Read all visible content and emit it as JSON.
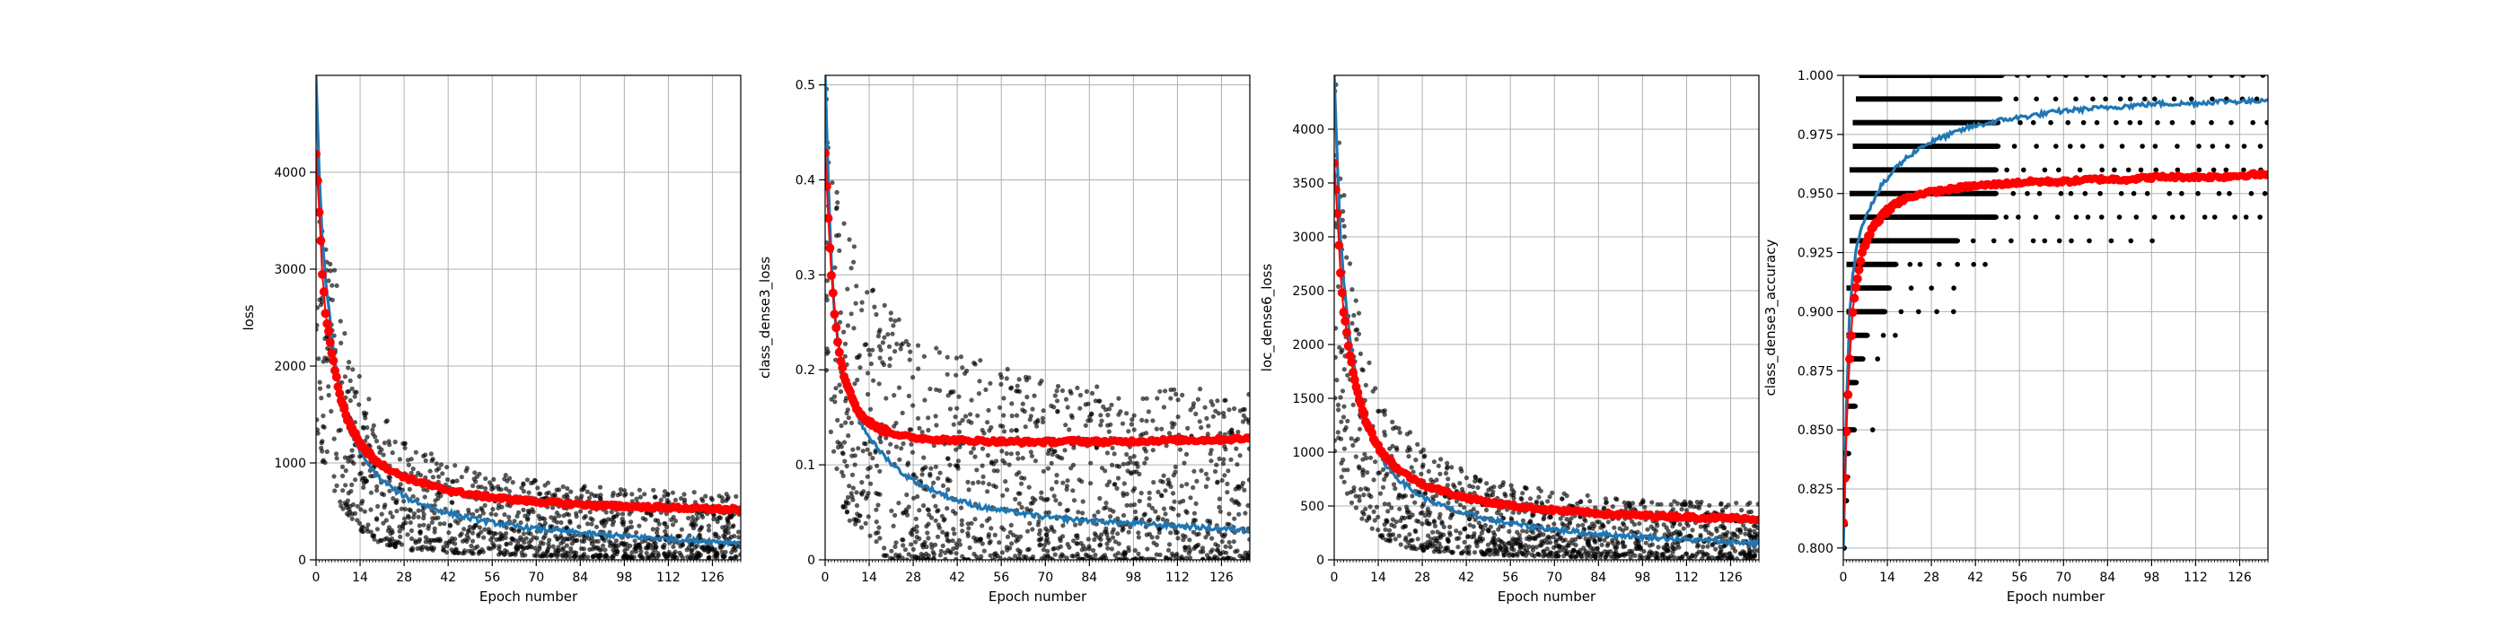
{
  "chart_data": [
    {
      "type": "scatter",
      "xlabel": "Epoch number",
      "ylabel": "loss",
      "xlim": [
        0,
        135
      ],
      "ylim": [
        0,
        5000
      ],
      "xticks": [
        0,
        14,
        28,
        42,
        56,
        70,
        84,
        98,
        112,
        126
      ],
      "yticks": [
        0,
        1000,
        2000,
        3000,
        4000
      ],
      "grid": true,
      "series": [
        {
          "kind": "scatter-cloud",
          "color": "#000000",
          "x": [
            1,
            2,
            3,
            5,
            8,
            12,
            16,
            20,
            25,
            30,
            40,
            50,
            60,
            70,
            80,
            90,
            100,
            110,
            120,
            130,
            135
          ],
          "y_min": [
            1300,
            1000,
            900,
            750,
            550,
            380,
            250,
            180,
            130,
            100,
            80,
            60,
            50,
            40,
            30,
            25,
            20,
            20,
            15,
            15,
            15
          ],
          "y_max": [
            5000,
            4400,
            3800,
            3200,
            2600,
            2100,
            1750,
            1550,
            1350,
            1200,
            1050,
            950,
            880,
            820,
            780,
            750,
            730,
            720,
            700,
            690,
            690
          ]
        },
        {
          "kind": "line",
          "color": "#1f77b4",
          "x": [
            0,
            1,
            2,
            3,
            4,
            5,
            6,
            8,
            10,
            12,
            14,
            16,
            20,
            25,
            30,
            40,
            50,
            60,
            70,
            80,
            90,
            100,
            110,
            120,
            130,
            135
          ],
          "y": [
            5000,
            4000,
            3300,
            2900,
            2600,
            2300,
            2050,
            1700,
            1450,
            1250,
            1120,
            1000,
            850,
            720,
            620,
            500,
            420,
            360,
            320,
            290,
            260,
            240,
            220,
            200,
            185,
            180
          ]
        },
        {
          "kind": "line-markers",
          "color": "#ff0000",
          "x": [
            0,
            1,
            2,
            3,
            4,
            5,
            6,
            8,
            10,
            12,
            14,
            16,
            20,
            25,
            30,
            40,
            50,
            60,
            70,
            80,
            90,
            100,
            110,
            120,
            130,
            135
          ],
          "y": [
            4200,
            3600,
            2950,
            2550,
            2350,
            2150,
            1950,
            1650,
            1450,
            1320,
            1200,
            1120,
            1000,
            900,
            830,
            730,
            670,
            630,
            600,
            580,
            560,
            550,
            540,
            530,
            520,
            515
          ]
        }
      ]
    },
    {
      "type": "scatter",
      "xlabel": "Epoch number",
      "ylabel": "class_dense3_loss",
      "xlim": [
        0,
        135
      ],
      "ylim": [
        0,
        0.51
      ],
      "xticks": [
        0,
        14,
        28,
        42,
        56,
        70,
        84,
        98,
        112,
        126
      ],
      "yticks": [
        0.0,
        0.1,
        0.2,
        0.3,
        0.4,
        0.5
      ],
      "grid": true,
      "series": [
        {
          "kind": "scatter-cloud",
          "color": "#000000",
          "x": [
            1,
            2,
            3,
            5,
            8,
            12,
            16,
            20,
            25,
            30,
            40,
            50,
            60,
            70,
            80,
            90,
            100,
            110,
            120,
            130,
            135
          ],
          "y_min": [
            0.18,
            0.12,
            0.09,
            0.06,
            0.04,
            0.02,
            0.01,
            0.0,
            0.0,
            0.0,
            0.0,
            0.0,
            0.0,
            0.0,
            0.0,
            0.0,
            0.0,
            0.0,
            0.0,
            0.0,
            0.0
          ],
          "y_max": [
            0.51,
            0.48,
            0.44,
            0.38,
            0.34,
            0.31,
            0.29,
            0.27,
            0.25,
            0.24,
            0.22,
            0.21,
            0.2,
            0.19,
            0.19,
            0.18,
            0.18,
            0.18,
            0.18,
            0.18,
            0.18
          ]
        },
        {
          "kind": "line",
          "color": "#1f77b4",
          "x": [
            0,
            1,
            2,
            3,
            4,
            5,
            6,
            8,
            10,
            12,
            14,
            16,
            20,
            25,
            30,
            40,
            50,
            60,
            70,
            80,
            90,
            100,
            110,
            120,
            130,
            135
          ],
          "y": [
            0.51,
            0.4,
            0.31,
            0.26,
            0.23,
            0.21,
            0.19,
            0.17,
            0.155,
            0.14,
            0.13,
            0.12,
            0.105,
            0.09,
            0.08,
            0.065,
            0.055,
            0.05,
            0.045,
            0.042,
            0.04,
            0.038,
            0.036,
            0.034,
            0.032,
            0.031
          ]
        },
        {
          "kind": "line-markers",
          "color": "#ff0000",
          "x": [
            0,
            1,
            2,
            3,
            4,
            5,
            6,
            8,
            10,
            12,
            14,
            16,
            20,
            25,
            30,
            40,
            50,
            60,
            70,
            80,
            90,
            100,
            110,
            120,
            130,
            135
          ],
          "y": [
            0.43,
            0.36,
            0.3,
            0.26,
            0.23,
            0.21,
            0.195,
            0.175,
            0.16,
            0.15,
            0.145,
            0.14,
            0.135,
            0.13,
            0.128,
            0.126,
            0.125,
            0.124,
            0.124,
            0.125,
            0.124,
            0.125,
            0.126,
            0.126,
            0.127,
            0.128
          ]
        }
      ]
    },
    {
      "type": "scatter",
      "xlabel": "Epoch number",
      "ylabel": "loc_dense6_loss",
      "xlim": [
        0,
        135
      ],
      "ylim": [
        0,
        4500
      ],
      "xticks": [
        0,
        14,
        28,
        42,
        56,
        70,
        84,
        98,
        112,
        126
      ],
      "yticks": [
        0,
        500,
        1000,
        1500,
        2000,
        2500,
        3000,
        3500,
        4000
      ],
      "grid": true,
      "series": [
        {
          "kind": "scatter-cloud",
          "color": "#000000",
          "x": [
            1,
            2,
            3,
            5,
            8,
            12,
            16,
            20,
            25,
            30,
            40,
            50,
            60,
            70,
            80,
            90,
            100,
            110,
            120,
            130,
            135
          ],
          "y_min": [
            1000,
            800,
            700,
            550,
            400,
            280,
            190,
            140,
            100,
            80,
            60,
            45,
            35,
            30,
            25,
            20,
            15,
            15,
            10,
            10,
            10
          ],
          "y_max": [
            4500,
            4000,
            3500,
            2900,
            2300,
            1850,
            1550,
            1350,
            1150,
            1000,
            850,
            760,
            690,
            640,
            600,
            580,
            560,
            550,
            540,
            530,
            530
          ]
        },
        {
          "kind": "line",
          "color": "#1f77b4",
          "x": [
            0,
            1,
            2,
            3,
            4,
            5,
            6,
            8,
            10,
            12,
            14,
            16,
            20,
            25,
            30,
            40,
            50,
            60,
            70,
            80,
            90,
            100,
            110,
            120,
            130,
            135
          ],
          "y": [
            4500,
            3700,
            3000,
            2600,
            2300,
            2050,
            1850,
            1550,
            1300,
            1130,
            1000,
            900,
            760,
            640,
            550,
            440,
            370,
            320,
            280,
            250,
            230,
            210,
            190,
            175,
            160,
            155
          ]
        },
        {
          "kind": "line-markers",
          "color": "#ff0000",
          "x": [
            0,
            1,
            2,
            3,
            4,
            5,
            6,
            8,
            10,
            12,
            14,
            16,
            20,
            25,
            30,
            40,
            50,
            60,
            70,
            80,
            90,
            100,
            110,
            120,
            130,
            135
          ],
          "y": [
            3700,
            3200,
            2650,
            2300,
            2100,
            1900,
            1750,
            1480,
            1300,
            1170,
            1050,
            970,
            850,
            750,
            680,
            590,
            530,
            490,
            460,
            440,
            420,
            410,
            400,
            390,
            385,
            380
          ]
        }
      ]
    },
    {
      "type": "scatter",
      "xlabel": "Epoch number",
      "ylabel": "class_dense3_accuracy",
      "xlim": [
        0,
        135
      ],
      "ylim": [
        0.795,
        1.0
      ],
      "xticks": [
        0,
        14,
        28,
        42,
        56,
        70,
        84,
        98,
        112,
        126
      ],
      "yticks": [
        0.8,
        0.825,
        0.85,
        0.875,
        0.9,
        0.925,
        0.95,
        0.975,
        1.0
      ],
      "ytick_labels": [
        "0.800",
        "0.825",
        "0.850",
        "0.875",
        "0.900",
        "0.925",
        "0.950",
        "0.975",
        "1.000"
      ],
      "grid": true,
      "series": [
        {
          "kind": "scatter-bands",
          "color": "#000000",
          "levels": [
            {
              "y": 1.0,
              "x_start": 5,
              "x_end": 135
            },
            {
              "y": 0.99,
              "x_start": 4,
              "x_end": 135
            },
            {
              "y": 0.98,
              "x_start": 3,
              "x_end": 135
            },
            {
              "y": 0.97,
              "x_start": 3,
              "x_end": 135
            },
            {
              "y": 0.96,
              "x_start": 2,
              "x_end": 135
            },
            {
              "y": 0.95,
              "x_start": 2,
              "x_end": 135
            },
            {
              "y": 0.94,
              "x_start": 2,
              "x_end": 135
            },
            {
              "y": 0.93,
              "x_start": 2,
              "x_end": 100
            },
            {
              "y": 0.92,
              "x_start": 1,
              "x_end": 46
            },
            {
              "y": 0.91,
              "x_start": 1,
              "x_end": 40
            },
            {
              "y": 0.9,
              "x_start": 1,
              "x_end": 36
            },
            {
              "y": 0.89,
              "x_start": 1,
              "x_end": 20
            },
            {
              "y": 0.88,
              "x_start": 1,
              "x_end": 16
            },
            {
              "y": 0.87,
              "x_start": 1,
              "x_end": 10
            },
            {
              "y": 0.86,
              "x_start": 1,
              "x_end": 9
            },
            {
              "y": 0.85,
              "x_start": 0,
              "x_end": 10
            },
            {
              "y": 0.84,
              "x_start": 0,
              "x_end": 5
            },
            {
              "y": 0.83,
              "x_start": 0,
              "x_end": 4
            },
            {
              "y": 0.82,
              "x_start": 0,
              "x_end": 3
            },
            {
              "y": 0.81,
              "x_start": 0,
              "x_end": 2
            },
            {
              "y": 0.8,
              "x_start": 0,
              "x_end": 1
            }
          ]
        },
        {
          "kind": "line",
          "color": "#1f77b4",
          "x": [
            0,
            1,
            2,
            3,
            4,
            5,
            6,
            8,
            10,
            12,
            14,
            16,
            20,
            25,
            30,
            40,
            50,
            60,
            70,
            80,
            90,
            100,
            110,
            120,
            130,
            135
          ],
          "y": [
            0.8,
            0.86,
            0.9,
            0.915,
            0.925,
            0.932,
            0.937,
            0.943,
            0.948,
            0.953,
            0.956,
            0.96,
            0.965,
            0.97,
            0.973,
            0.978,
            0.981,
            0.983,
            0.985,
            0.986,
            0.987,
            0.988,
            0.988,
            0.989,
            0.989,
            0.99
          ]
        },
        {
          "kind": "line-markers",
          "color": "#ff0000",
          "x": [
            0,
            1,
            2,
            3,
            4,
            5,
            6,
            8,
            10,
            12,
            14,
            16,
            20,
            25,
            30,
            40,
            50,
            60,
            70,
            80,
            90,
            100,
            110,
            120,
            130,
            135
          ],
          "y": [
            0.81,
            0.85,
            0.88,
            0.9,
            0.91,
            0.918,
            0.925,
            0.932,
            0.937,
            0.94,
            0.943,
            0.945,
            0.948,
            0.95,
            0.951,
            0.953,
            0.954,
            0.955,
            0.955,
            0.956,
            0.956,
            0.957,
            0.957,
            0.957,
            0.958,
            0.958
          ]
        }
      ]
    }
  ]
}
